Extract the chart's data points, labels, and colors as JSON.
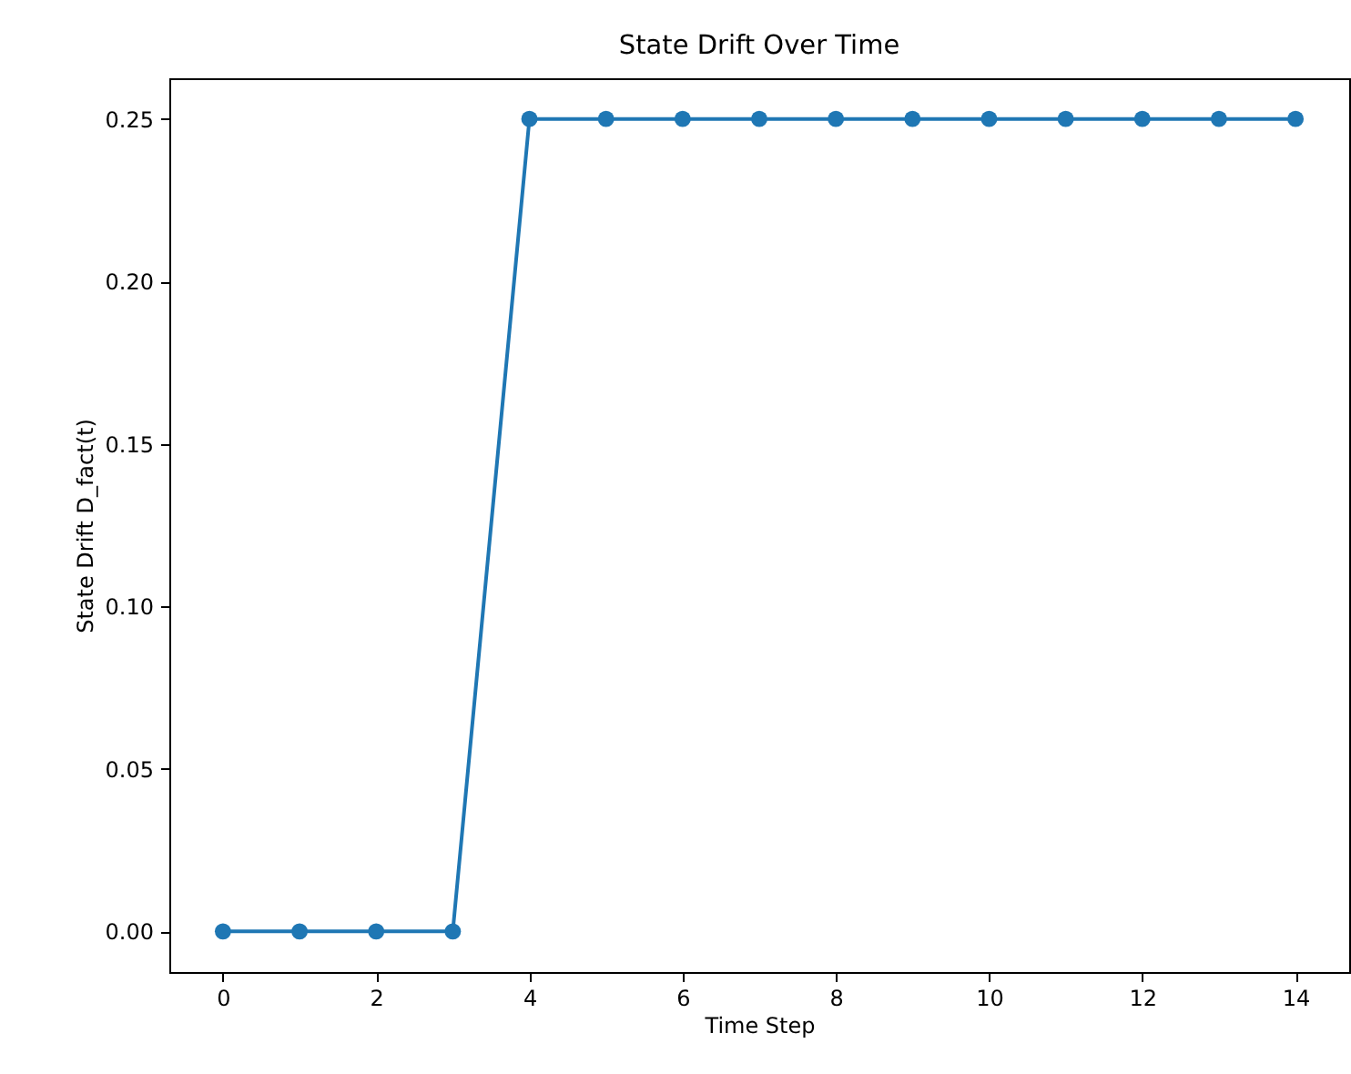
{
  "chart_data": {
    "type": "line",
    "title": "State Drift Over Time",
    "xlabel": "Time Step",
    "ylabel": "State Drift D_fact(t)",
    "x": [
      0,
      1,
      2,
      3,
      4,
      5,
      6,
      7,
      8,
      9,
      10,
      11,
      12,
      13,
      14
    ],
    "series": [
      {
        "color": "#1f77b4",
        "values": [
          0,
          0,
          0,
          0,
          0.25,
          0.25,
          0.25,
          0.25,
          0.25,
          0.25,
          0.25,
          0.25,
          0.25,
          0.25,
          0.25
        ]
      }
    ],
    "xlim": [
      -0.7,
      14.7
    ],
    "xticks": [
      0,
      2,
      4,
      6,
      8,
      10,
      12,
      14
    ],
    "ylim": [
      -0.0125,
      0.2625
    ],
    "yticks": [
      {
        "value": 0,
        "label": "0.00"
      },
      {
        "value": 0.05,
        "label": "0.05"
      },
      {
        "value": 0.1,
        "label": "0.10"
      },
      {
        "value": 0.15,
        "label": "0.15"
      },
      {
        "value": 0.2,
        "label": "0.20"
      },
      {
        "value": 0.25,
        "label": "0.25"
      }
    ],
    "grid": false,
    "marker": "circle",
    "line_style": "solid"
  }
}
